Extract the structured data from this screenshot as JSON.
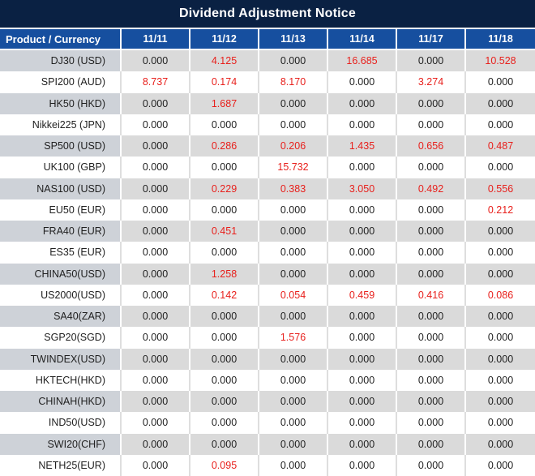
{
  "title": "Dividend Adjustment Notice",
  "colors": {
    "title_bg": "#0a2143",
    "header_bg": "#164f9f",
    "stripe_gray": "#dadada",
    "product_stripe_gray": "#ced2d8",
    "highlight_red": "#e8201c",
    "text_black": "#1f1f1f"
  },
  "chart_data": {
    "type": "table",
    "title": "Dividend Adjustment Notice",
    "columns": [
      "Product / Currency",
      "11/11",
      "11/12",
      "11/13",
      "11/14",
      "11/17",
      "11/18"
    ],
    "rows": [
      [
        "DJ30 (USD)",
        "0.000",
        "4.125",
        "0.000",
        "16.685",
        "0.000",
        "10.528"
      ],
      [
        "SPI200 (AUD)",
        "8.737",
        "0.174",
        "8.170",
        "0.000",
        "3.274",
        "0.000"
      ],
      [
        "HK50 (HKD)",
        "0.000",
        "1.687",
        "0.000",
        "0.000",
        "0.000",
        "0.000"
      ],
      [
        "Nikkei225 (JPN)",
        "0.000",
        "0.000",
        "0.000",
        "0.000",
        "0.000",
        "0.000"
      ],
      [
        "SP500 (USD)",
        "0.000",
        "0.286",
        "0.206",
        "1.435",
        "0.656",
        "0.487"
      ],
      [
        "UK100 (GBP)",
        "0.000",
        "0.000",
        "15.732",
        "0.000",
        "0.000",
        "0.000"
      ],
      [
        "NAS100 (USD)",
        "0.000",
        "0.229",
        "0.383",
        "3.050",
        "0.492",
        "0.556"
      ],
      [
        "EU50 (EUR)",
        "0.000",
        "0.000",
        "0.000",
        "0.000",
        "0.000",
        "0.212"
      ],
      [
        "FRA40 (EUR)",
        "0.000",
        "0.451",
        "0.000",
        "0.000",
        "0.000",
        "0.000"
      ],
      [
        "ES35 (EUR)",
        "0.000",
        "0.000",
        "0.000",
        "0.000",
        "0.000",
        "0.000"
      ],
      [
        "CHINA50(USD)",
        "0.000",
        "1.258",
        "0.000",
        "0.000",
        "0.000",
        "0.000"
      ],
      [
        "US2000(USD)",
        "0.000",
        "0.142",
        "0.054",
        "0.459",
        "0.416",
        "0.086"
      ],
      [
        "SA40(ZAR)",
        "0.000",
        "0.000",
        "0.000",
        "0.000",
        "0.000",
        "0.000"
      ],
      [
        "SGP20(SGD)",
        "0.000",
        "0.000",
        "1.576",
        "0.000",
        "0.000",
        "0.000"
      ],
      [
        "TWINDEX(USD)",
        "0.000",
        "0.000",
        "0.000",
        "0.000",
        "0.000",
        "0.000"
      ],
      [
        "HKTECH(HKD)",
        "0.000",
        "0.000",
        "0.000",
        "0.000",
        "0.000",
        "0.000"
      ],
      [
        "CHINAH(HKD)",
        "0.000",
        "0.000",
        "0.000",
        "0.000",
        "0.000",
        "0.000"
      ],
      [
        "IND50(USD)",
        "0.000",
        "0.000",
        "0.000",
        "0.000",
        "0.000",
        "0.000"
      ],
      [
        "SWI20(CHF)",
        "0.000",
        "0.000",
        "0.000",
        "0.000",
        "0.000",
        "0.000"
      ],
      [
        "NETH25(EUR)",
        "0.000",
        "0.095",
        "0.000",
        "0.000",
        "0.000",
        "0.000"
      ]
    ]
  }
}
